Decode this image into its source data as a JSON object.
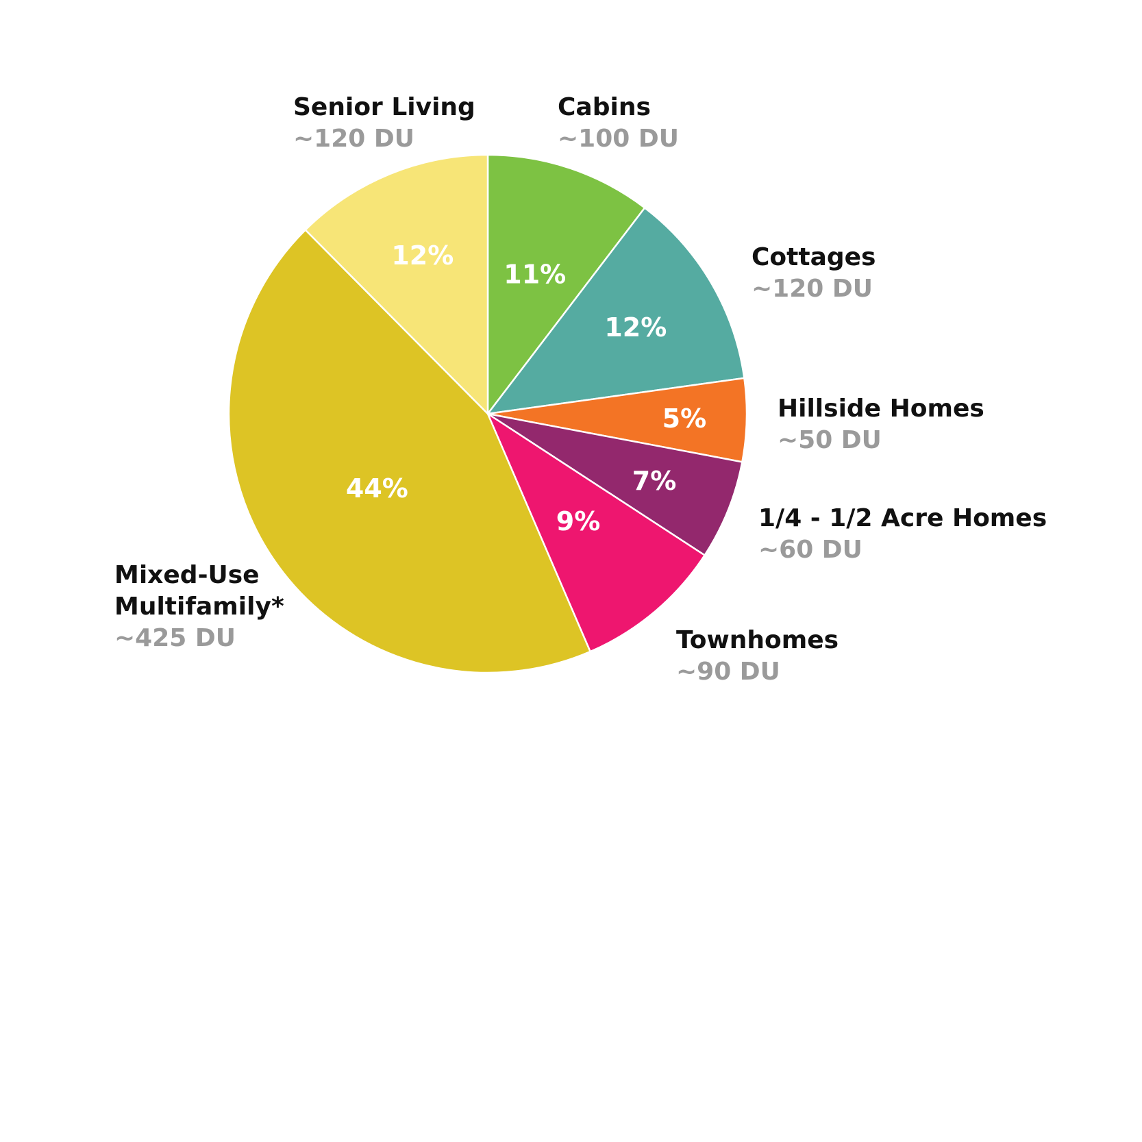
{
  "chart_data": {
    "type": "pie",
    "title": "",
    "slices": [
      {
        "label": "Cabins",
        "label_lines": [
          "Cabins"
        ],
        "units": "~100 DU",
        "percent_label": "11%",
        "value": 100,
        "color": "#7DC243"
      },
      {
        "label": "Cottages",
        "label_lines": [
          "Cottages"
        ],
        "units": "~120 DU",
        "percent_label": "12%",
        "value": 120,
        "color": "#55ABA1"
      },
      {
        "label": "Hillside Homes",
        "label_lines": [
          "Hillside Homes"
        ],
        "units": "~50 DU",
        "percent_label": "5%",
        "value": 50,
        "color": "#F37425"
      },
      {
        "label": "1/4 - 1/2 Acre Homes",
        "label_lines": [
          "1/4 - 1/2 Acre Homes"
        ],
        "units": "~60 DU",
        "percent_label": "7%",
        "value": 60,
        "color": "#93286D"
      },
      {
        "label": "Townhomes",
        "label_lines": [
          "Townhomes"
        ],
        "units": "~90 DU",
        "percent_label": "9%",
        "value": 90,
        "color": "#EE166F"
      },
      {
        "label": "Mixed-Use Multifamily*",
        "label_lines": [
          "Mixed-Use",
          "Multifamily*"
        ],
        "units": "~425 DU",
        "percent_label": "44%",
        "value": 425,
        "color": "#DDC425"
      },
      {
        "label": "Senior Living",
        "label_lines": [
          "Senior Living"
        ],
        "units": "~120 DU",
        "percent_label": "12%",
        "value": 120,
        "color": "#F7E577"
      }
    ]
  }
}
